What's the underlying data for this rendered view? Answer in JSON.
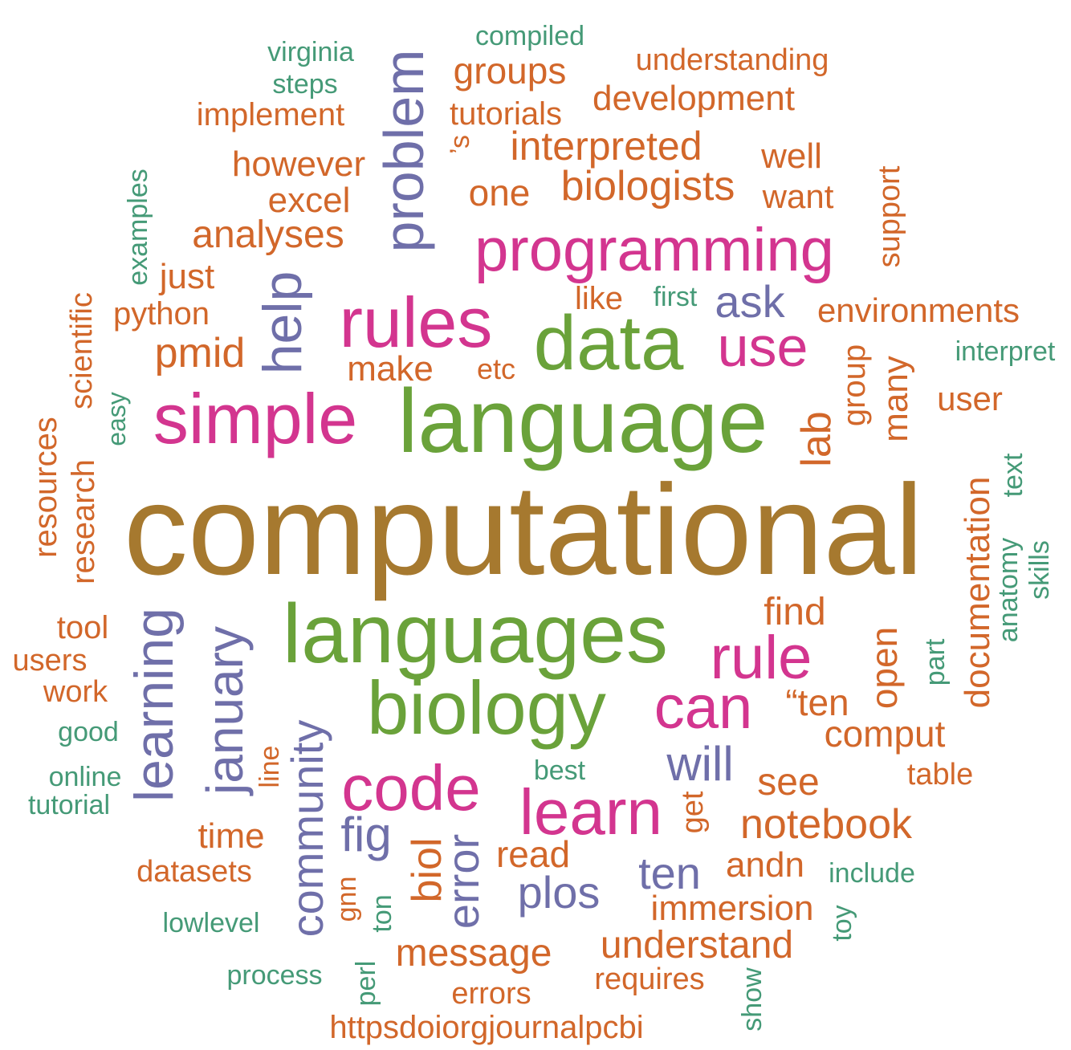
{
  "colors": {
    "gold": "#A6792F",
    "green": "#6AA23A",
    "magenta": "#D3358F",
    "purple": "#6F6FA9",
    "orange": "#D2672A",
    "teal": "#459A77"
  },
  "words": [
    {
      "text": "computational",
      "color": "gold"
    },
    {
      "text": "language",
      "color": "green"
    },
    {
      "text": "languages",
      "color": "green"
    },
    {
      "text": "biology",
      "color": "green"
    },
    {
      "text": "data",
      "color": "green"
    },
    {
      "text": "simple",
      "color": "magenta"
    },
    {
      "text": "rules",
      "color": "magenta"
    },
    {
      "text": "programming",
      "color": "magenta"
    },
    {
      "text": "code",
      "color": "magenta"
    },
    {
      "text": "learn",
      "color": "magenta"
    },
    {
      "text": "can",
      "color": "magenta"
    },
    {
      "text": "rule",
      "color": "magenta"
    },
    {
      "text": "use",
      "color": "magenta"
    },
    {
      "text": "problem",
      "color": "purple"
    },
    {
      "text": "help",
      "color": "purple"
    },
    {
      "text": "ask",
      "color": "purple"
    },
    {
      "text": "learning",
      "color": "purple"
    },
    {
      "text": "january",
      "color": "purple"
    },
    {
      "text": "community",
      "color": "purple"
    },
    {
      "text": "fig",
      "color": "purple"
    },
    {
      "text": "will",
      "color": "purple"
    },
    {
      "text": "plos",
      "color": "purple"
    },
    {
      "text": "ten",
      "color": "purple"
    },
    {
      "text": "error",
      "color": "purple"
    },
    {
      "text": "compiled",
      "color": "teal"
    },
    {
      "text": "virginia",
      "color": "teal"
    },
    {
      "text": "steps",
      "color": "teal"
    },
    {
      "text": "understanding",
      "color": "orange"
    },
    {
      "text": "groups",
      "color": "orange"
    },
    {
      "text": "development",
      "color": "orange"
    },
    {
      "text": "implement",
      "color": "orange"
    },
    {
      "text": "tutorials",
      "color": "orange"
    },
    {
      "text": "’s",
      "color": "orange"
    },
    {
      "text": "interpreted",
      "color": "orange"
    },
    {
      "text": "however",
      "color": "orange"
    },
    {
      "text": "well",
      "color": "orange"
    },
    {
      "text": "examples",
      "color": "teal"
    },
    {
      "text": "excel",
      "color": "orange"
    },
    {
      "text": "one",
      "color": "orange"
    },
    {
      "text": "biologists",
      "color": "orange"
    },
    {
      "text": "want",
      "color": "orange"
    },
    {
      "text": "support",
      "color": "orange"
    },
    {
      "text": "analyses",
      "color": "orange"
    },
    {
      "text": "just",
      "color": "orange"
    },
    {
      "text": "like",
      "color": "orange"
    },
    {
      "text": "first",
      "color": "teal"
    },
    {
      "text": "environments",
      "color": "orange"
    },
    {
      "text": "python",
      "color": "orange"
    },
    {
      "text": "scientific",
      "color": "orange"
    },
    {
      "text": "pmid",
      "color": "orange"
    },
    {
      "text": "make",
      "color": "orange"
    },
    {
      "text": "etc",
      "color": "orange"
    },
    {
      "text": "interpret",
      "color": "teal"
    },
    {
      "text": "group",
      "color": "orange"
    },
    {
      "text": "many",
      "color": "orange"
    },
    {
      "text": "user",
      "color": "orange"
    },
    {
      "text": "easy",
      "color": "teal"
    },
    {
      "text": "lab",
      "color": "orange"
    },
    {
      "text": "resources",
      "color": "orange"
    },
    {
      "text": "research",
      "color": "orange"
    },
    {
      "text": "text",
      "color": "teal"
    },
    {
      "text": "documentation",
      "color": "orange"
    },
    {
      "text": "anatomy",
      "color": "teal"
    },
    {
      "text": "skills",
      "color": "teal"
    },
    {
      "text": "find",
      "color": "orange"
    },
    {
      "text": "tool",
      "color": "orange"
    },
    {
      "text": "users",
      "color": "orange"
    },
    {
      "text": "work",
      "color": "orange"
    },
    {
      "text": "open",
      "color": "orange"
    },
    {
      "text": "part",
      "color": "teal"
    },
    {
      "text": "“ten",
      "color": "orange"
    },
    {
      "text": "comput",
      "color": "orange"
    },
    {
      "text": "good",
      "color": "teal"
    },
    {
      "text": "line",
      "color": "orange"
    },
    {
      "text": "best",
      "color": "teal"
    },
    {
      "text": "table",
      "color": "orange"
    },
    {
      "text": "see",
      "color": "orange"
    },
    {
      "text": "online",
      "color": "teal"
    },
    {
      "text": "tutorial",
      "color": "teal"
    },
    {
      "text": "get",
      "color": "orange"
    },
    {
      "text": "notebook",
      "color": "orange"
    },
    {
      "text": "time",
      "color": "orange"
    },
    {
      "text": "biol",
      "color": "orange"
    },
    {
      "text": "read",
      "color": "orange"
    },
    {
      "text": "andn",
      "color": "orange"
    },
    {
      "text": "datasets",
      "color": "orange"
    },
    {
      "text": "include",
      "color": "teal"
    },
    {
      "text": "immersion",
      "color": "orange"
    },
    {
      "text": "gnn",
      "color": "orange"
    },
    {
      "text": "ton",
      "color": "teal"
    },
    {
      "text": "toy",
      "color": "teal"
    },
    {
      "text": "lowlevel",
      "color": "teal"
    },
    {
      "text": "understand",
      "color": "orange"
    },
    {
      "text": "message",
      "color": "orange"
    },
    {
      "text": "process",
      "color": "teal"
    },
    {
      "text": "perl",
      "color": "teal"
    },
    {
      "text": "requires",
      "color": "orange"
    },
    {
      "text": "errors",
      "color": "orange"
    },
    {
      "text": "show",
      "color": "teal"
    },
    {
      "text": "httpsdoiorgjournalpcbi",
      "color": "orange"
    }
  ]
}
